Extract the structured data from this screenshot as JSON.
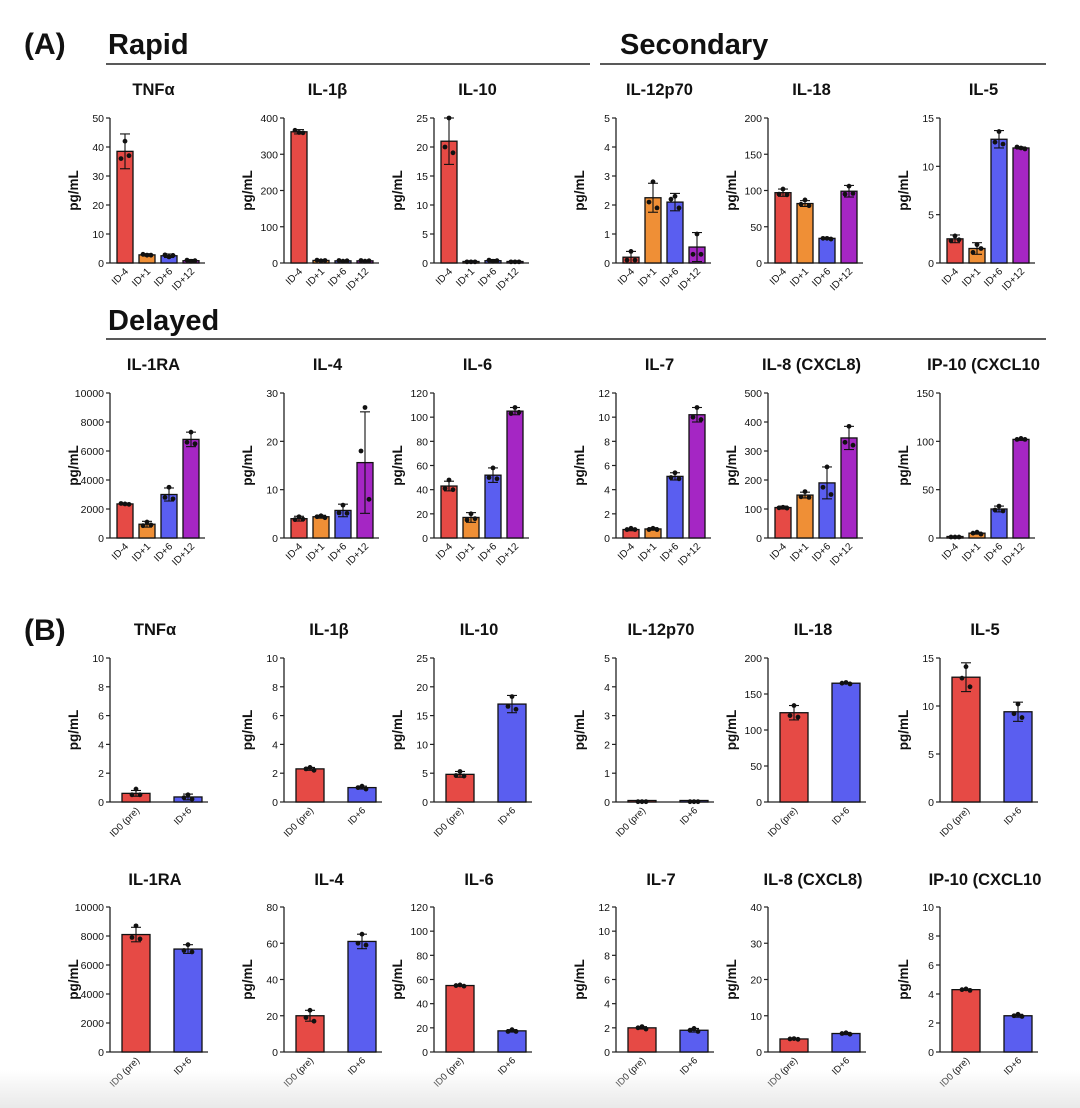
{
  "panel_labels": [
    "(A)",
    "(B)"
  ],
  "section_titles": {
    "rapid": "Rapid",
    "secondary": "Secondary",
    "delayed": "Delayed"
  },
  "colors": {
    "ID-4": "#e64a45",
    "ID+1": "#ef8f36",
    "ID+6": "#5a5ef0",
    "ID+12": "#a526c4",
    "ID0 (pre)": "#e64a45",
    "ID+6_b": "#5a5ef0"
  },
  "chart_data": [
    {
      "type": "bar",
      "panel": "A",
      "title": "TNFα",
      "ylabel": "pg/mL",
      "categories": [
        "ID-4",
        "ID+1",
        "ID+6",
        "ID+12"
      ],
      "values": [
        38.5,
        2.8,
        2.5,
        0.8
      ],
      "errors": [
        6,
        0.4,
        0.6,
        0.4
      ],
      "points": [
        [
          42,
          36,
          37
        ],
        [
          2.7,
          3,
          2.7
        ],
        [
          2.1,
          2.8,
          2.6
        ],
        [
          0.6,
          1,
          0.8
        ]
      ],
      "ylim": [
        0,
        50
      ],
      "yticks": [
        0,
        10,
        20,
        30,
        40,
        50
      ]
    },
    {
      "type": "bar",
      "panel": "A",
      "title": "IL-1β",
      "ylabel": "pg/mL",
      "categories": [
        "ID-4",
        "ID+1",
        "ID+6",
        "ID+12"
      ],
      "values": [
        362,
        7,
        6,
        6
      ],
      "errors": [
        6,
        2,
        2,
        2
      ],
      "points": [
        [
          360,
          366,
          359
        ],
        [
          6,
          8,
          7
        ],
        [
          5,
          7,
          6
        ],
        [
          5,
          7,
          6
        ]
      ],
      "ylim": [
        0,
        400
      ],
      "yticks": [
        0,
        100,
        200,
        300,
        400
      ]
    },
    {
      "type": "bar",
      "panel": "A",
      "title": "IL-10",
      "ylabel": "pg/mL",
      "categories": [
        "ID-4",
        "ID+1",
        "ID+6",
        "ID+12"
      ],
      "values": [
        21,
        0.2,
        0.4,
        0.2
      ],
      "errors": [
        4,
        0.1,
        0.2,
        0.1
      ],
      "points": [
        [
          25,
          20,
          19
        ],
        [
          0.2,
          0.2,
          0.2
        ],
        [
          0.3,
          0.5,
          0.4
        ],
        [
          0.2,
          0.2,
          0.2
        ]
      ],
      "ylim": [
        0,
        25
      ],
      "yticks": [
        0,
        5,
        10,
        15,
        20,
        25
      ]
    },
    {
      "type": "bar",
      "panel": "A",
      "title": "IL-12p70",
      "ylabel": "pg/mL",
      "categories": [
        "ID-4",
        "ID+1",
        "ID+6",
        "ID+12"
      ],
      "values": [
        0.2,
        2.25,
        2.1,
        0.55
      ],
      "errors": [
        0.2,
        0.5,
        0.3,
        0.5
      ],
      "points": [
        [
          0.4,
          0.1,
          0.1
        ],
        [
          2.8,
          2.1,
          1.9
        ],
        [
          2.3,
          2.2,
          1.9
        ],
        [
          1.0,
          0.3,
          0.3
        ]
      ],
      "ylim": [
        0,
        5
      ],
      "yticks": [
        0,
        1,
        2,
        3,
        4,
        5
      ]
    },
    {
      "type": "bar",
      "panel": "A",
      "title": "IL-18",
      "ylabel": "pg/mL",
      "categories": [
        "ID-4",
        "ID+1",
        "ID+6",
        "ID+12"
      ],
      "values": [
        97,
        82,
        34,
        99
      ],
      "errors": [
        5,
        4,
        1,
        8
      ],
      "points": [
        [
          102,
          95,
          94
        ],
        [
          87,
          81,
          79
        ],
        [
          34,
          34,
          33
        ],
        [
          106,
          95,
          96
        ]
      ],
      "ylim": [
        0,
        200
      ],
      "yticks": [
        0,
        50,
        100,
        150,
        200
      ]
    },
    {
      "type": "bar",
      "panel": "A",
      "title": "IL-5",
      "ylabel": "pg/mL",
      "categories": [
        "ID-4",
        "ID+1",
        "ID+6",
        "ID+12"
      ],
      "values": [
        2.5,
        1.5,
        12.8,
        11.9
      ],
      "errors": [
        0.4,
        0.6,
        0.9,
        0.1
      ],
      "points": [
        [
          2.8,
          2.3,
          2.4
        ],
        [
          1.9,
          1.1,
          1.5
        ],
        [
          13.6,
          12.5,
          12.3
        ],
        [
          11.9,
          12,
          11.8
        ]
      ],
      "ylim": [
        0,
        15
      ],
      "yticks": [
        0,
        5,
        10,
        15
      ]
    },
    {
      "type": "bar",
      "panel": "A",
      "title": "IL-1RA",
      "ylabel": "pg/mL",
      "categories": [
        "ID-4",
        "ID+1",
        "ID+6",
        "ID+12"
      ],
      "values": [
        2350,
        950,
        3000,
        6800
      ],
      "errors": [
        60,
        200,
        450,
        500
      ],
      "points": [
        [
          2350,
          2380,
          2320
        ],
        [
          1100,
          850,
          900
        ],
        [
          3500,
          2800,
          2700
        ],
        [
          7300,
          6600,
          6500
        ]
      ],
      "ylim": [
        0,
        10000
      ],
      "yticks": [
        0,
        2000,
        4000,
        6000,
        8000,
        10000
      ]
    },
    {
      "type": "bar",
      "panel": "A",
      "title": "IL-4",
      "ylabel": "pg/mL",
      "categories": [
        "ID-4",
        "ID+1",
        "ID+6",
        "ID+12"
      ],
      "values": [
        4,
        4.4,
        5.7,
        15.6
      ],
      "errors": [
        0.5,
        0.3,
        1.3,
        10.5
      ],
      "points": [
        [
          4.4,
          3.8,
          3.9
        ],
        [
          4.6,
          4.4,
          4.2
        ],
        [
          6.8,
          5.2,
          5.1
        ],
        [
          27,
          18,
          8
        ]
      ],
      "ylim": [
        0,
        30
      ],
      "yticks": [
        0,
        10,
        20,
        30
      ]
    },
    {
      "type": "bar",
      "panel": "A",
      "title": "IL-6",
      "ylabel": "pg/mL",
      "categories": [
        "ID-4",
        "ID+1",
        "ID+6",
        "ID+12"
      ],
      "values": [
        43,
        17,
        52,
        105
      ],
      "errors": [
        4,
        4,
        6,
        3
      ],
      "points": [
        [
          48,
          41,
          40
        ],
        [
          20,
          15,
          16
        ],
        [
          58,
          50,
          49
        ],
        [
          108,
          103,
          104
        ]
      ],
      "ylim": [
        0,
        120
      ],
      "yticks": [
        0,
        20,
        40,
        60,
        80,
        100,
        120
      ]
    },
    {
      "type": "bar",
      "panel": "A",
      "title": "IL-7",
      "ylabel": "pg/mL",
      "categories": [
        "ID-4",
        "ID+1",
        "ID+6",
        "ID+12"
      ],
      "values": [
        0.7,
        0.75,
        5.1,
        10.2
      ],
      "errors": [
        0.1,
        0.1,
        0.3,
        0.6
      ],
      "points": [
        [
          0.8,
          0.7,
          0.7
        ],
        [
          0.8,
          0.7,
          0.7
        ],
        [
          5.4,
          5,
          4.9
        ],
        [
          10.8,
          10,
          9.8
        ]
      ],
      "ylim": [
        0,
        12
      ],
      "yticks": [
        0,
        2,
        4,
        6,
        8,
        10,
        12
      ]
    },
    {
      "type": "bar",
      "panel": "A",
      "title": "IL-8 (CXCL8)",
      "ylabel": "pg/mL",
      "categories": [
        "ID-4",
        "ID+1",
        "ID+6",
        "ID+12"
      ],
      "values": [
        105,
        148,
        190,
        345
      ],
      "errors": [
        5,
        10,
        55,
        40
      ],
      "points": [
        [
          106,
          104,
          103
        ],
        [
          160,
          142,
          140
        ],
        [
          245,
          175,
          150
        ],
        [
          385,
          330,
          320
        ]
      ],
      "ylim": [
        0,
        500
      ],
      "yticks": [
        0,
        100,
        200,
        300,
        400,
        500
      ]
    },
    {
      "type": "bar",
      "panel": "A",
      "title": "IP-10 (CXCL10",
      "ylabel": "pg/mL",
      "categories": [
        "ID-4",
        "ID+1",
        "ID+6",
        "ID+12"
      ],
      "values": [
        1,
        5,
        30,
        102
      ],
      "errors": [
        1,
        1,
        3,
        1
      ],
      "points": [
        [
          1,
          1,
          1
        ],
        [
          6,
          5,
          4
        ],
        [
          33,
          29,
          28
        ],
        [
          103,
          102,
          102
        ]
      ],
      "ylim": [
        0,
        150
      ],
      "yticks": [
        0,
        50,
        100,
        150
      ]
    },
    {
      "type": "bar",
      "panel": "B",
      "title": "TNFα",
      "ylabel": "pg/mL",
      "categories": [
        "ID0 (pre)",
        "ID+6"
      ],
      "values": [
        0.6,
        0.35
      ],
      "errors": [
        0.2,
        0.2
      ],
      "points": [
        [
          0.9,
          0.5,
          0.5
        ],
        [
          0.5,
          0.3,
          0.2
        ]
      ],
      "ylim": [
        0,
        10
      ],
      "yticks": [
        0,
        2,
        4,
        6,
        8,
        10
      ]
    },
    {
      "type": "bar",
      "panel": "B",
      "title": "IL-1β",
      "ylabel": "pg/mL",
      "categories": [
        "ID0 (pre)",
        "ID+6"
      ],
      "values": [
        2.3,
        1.0
      ],
      "errors": [
        0.1,
        0.1
      ],
      "points": [
        [
          2.4,
          2.3,
          2.2
        ],
        [
          1.1,
          1,
          0.9
        ]
      ],
      "ylim": [
        0,
        10
      ],
      "yticks": [
        0,
        2,
        4,
        6,
        8,
        10
      ]
    },
    {
      "type": "bar",
      "panel": "B",
      "title": "IL-10",
      "ylabel": "pg/mL",
      "categories": [
        "ID0 (pre)",
        "ID+6"
      ],
      "values": [
        4.8,
        17
      ],
      "errors": [
        0.5,
        1.5
      ],
      "points": [
        [
          5.3,
          4.6,
          4.5
        ],
        [
          18.3,
          16.6,
          16.1
        ]
      ],
      "ylim": [
        0,
        25
      ],
      "yticks": [
        0,
        5,
        10,
        15,
        20,
        25
      ]
    },
    {
      "type": "bar",
      "panel": "B",
      "title": "IL-12p70",
      "ylabel": "pg/mL",
      "categories": [
        "ID0 (pre)",
        "ID+6"
      ],
      "values": [
        0.01,
        0.01
      ],
      "errors": [
        0,
        0
      ],
      "points": [
        [
          0.01,
          0.01,
          0.01
        ],
        [
          0.01,
          0.01,
          0.01
        ]
      ],
      "ylim": [
        0,
        5
      ],
      "yticks": [
        0,
        1,
        2,
        3,
        4,
        5
      ]
    },
    {
      "type": "bar",
      "panel": "B",
      "title": "IL-18",
      "ylabel": "pg/mL",
      "categories": [
        "ID0 (pre)",
        "ID+6"
      ],
      "values": [
        124,
        165
      ],
      "errors": [
        10,
        1
      ],
      "points": [
        [
          134,
          120,
          118
        ],
        [
          166,
          165,
          164
        ]
      ],
      "ylim": [
        0,
        200
      ],
      "yticks": [
        0,
        50,
        100,
        150,
        200
      ]
    },
    {
      "type": "bar",
      "panel": "B",
      "title": "IL-5",
      "ylabel": "pg/mL",
      "categories": [
        "ID0 (pre)",
        "ID+6"
      ],
      "values": [
        13,
        9.4
      ],
      "errors": [
        1.5,
        1
      ],
      "points": [
        [
          14.1,
          12.9,
          12
        ],
        [
          10.2,
          9.2,
          8.8
        ]
      ],
      "ylim": [
        0,
        15
      ],
      "yticks": [
        0,
        5,
        10,
        15
      ]
    },
    {
      "type": "bar",
      "panel": "B",
      "title": "IL-1RA",
      "ylabel": "pg/mL",
      "categories": [
        "ID0 (pre)",
        "ID+6"
      ],
      "values": [
        8100,
        7100
      ],
      "errors": [
        500,
        300
      ],
      "points": [
        [
          8700,
          7900,
          7800
        ],
        [
          7400,
          7000,
          6900
        ]
      ],
      "ylim": [
        0,
        10000
      ],
      "yticks": [
        0,
        2000,
        4000,
        6000,
        8000,
        10000
      ]
    },
    {
      "type": "bar",
      "panel": "B",
      "title": "IL-4",
      "ylabel": "pg/mL",
      "categories": [
        "ID0 (pre)",
        "ID+6"
      ],
      "values": [
        20,
        61
      ],
      "errors": [
        3,
        4
      ],
      "points": [
        [
          23,
          19,
          17
        ],
        [
          65,
          60,
          59
        ]
      ],
      "ylim": [
        0,
        80
      ],
      "yticks": [
        0,
        20,
        40,
        60,
        80
      ]
    },
    {
      "type": "bar",
      "panel": "B",
      "title": "IL-6",
      "ylabel": "pg/mL",
      "categories": [
        "ID0 (pre)",
        "ID+6"
      ],
      "values": [
        55,
        17.5
      ],
      "errors": [
        0.5,
        1
      ],
      "points": [
        [
          55.5,
          55,
          54.5
        ],
        [
          18.5,
          17,
          17
        ]
      ],
      "ylim": [
        0,
        120
      ],
      "yticks": [
        0,
        20,
        40,
        60,
        80,
        100,
        120
      ]
    },
    {
      "type": "bar",
      "panel": "B",
      "title": "IL-7",
      "ylabel": "pg/mL",
      "categories": [
        "ID0 (pre)",
        "ID+6"
      ],
      "values": [
        2.0,
        1.8
      ],
      "errors": [
        0.1,
        0.15
      ],
      "points": [
        [
          2.1,
          2,
          1.9
        ],
        [
          1.95,
          1.8,
          1.7
        ]
      ],
      "ylim": [
        0,
        12
      ],
      "yticks": [
        0,
        2,
        4,
        6,
        8,
        10,
        12
      ]
    },
    {
      "type": "bar",
      "panel": "B",
      "title": "IL-8 (CXCL8)",
      "ylabel": "pg/mL",
      "categories": [
        "ID0 (pre)",
        "ID+6"
      ],
      "values": [
        3.6,
        5.1
      ],
      "errors": [
        0.2,
        0.3
      ],
      "points": [
        [
          3.7,
          3.6,
          3.5
        ],
        [
          5.3,
          5.1,
          4.9
        ]
      ],
      "ylim": [
        0,
        40
      ],
      "yticks": [
        0,
        10,
        20,
        30,
        40
      ]
    },
    {
      "type": "bar",
      "panel": "B",
      "title": "IP-10 (CXCL10",
      "ylabel": "pg/mL",
      "categories": [
        "ID0 (pre)",
        "ID+6"
      ],
      "values": [
        4.3,
        2.5
      ],
      "errors": [
        0.05,
        0.1
      ],
      "points": [
        [
          4.35,
          4.3,
          4.25
        ],
        [
          2.6,
          2.5,
          2.45
        ]
      ],
      "ylim": [
        0,
        10
      ],
      "yticks": [
        0,
        2,
        4,
        6,
        8,
        10
      ]
    }
  ]
}
